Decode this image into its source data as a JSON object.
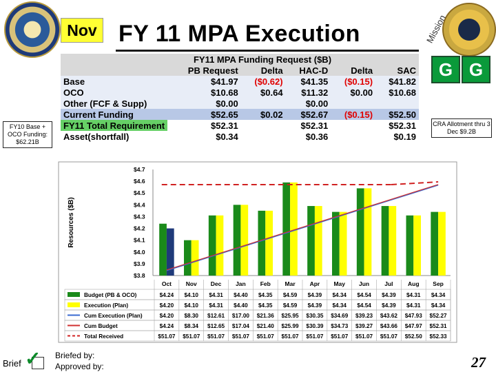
{
  "header": {
    "month_badge": "Nov",
    "title": "FY 11 MPA Execution",
    "mission_text": "Mission",
    "g_left": "G",
    "g_right": "G"
  },
  "notes": {
    "left": "FY10 Base + OCO Funding: $62.21B",
    "right": "CRA Allotment thru 3 Dec $9.2B"
  },
  "funding_table": {
    "title": "FY11 MPA Funding Request ($B)",
    "columns": [
      "PB Request",
      "Delta",
      "HAC-D",
      "Delta",
      "SAC"
    ],
    "rows": [
      {
        "label": "Base",
        "cells": [
          "$41.97",
          "($0.62)",
          "$41.35",
          "($0.15)",
          "$41.82"
        ]
      },
      {
        "label": "OCO",
        "cells": [
          "$10.68",
          "$0.64",
          "$11.32",
          "$0.00",
          "$10.68"
        ]
      },
      {
        "label": "Other (FCF & Supp)",
        "cells": [
          "$0.00",
          "",
          "$0.00",
          "",
          ""
        ]
      },
      {
        "label": "Current Funding",
        "cells": [
          "$52.65",
          "$0.02",
          "$52.67",
          "($0.15)",
          "$52.50"
        ]
      },
      {
        "label": "FY11 Total Requirement",
        "cells": [
          "$52.31",
          "",
          "$52.31",
          "",
          "$52.31"
        ]
      },
      {
        "label": "Asset(shortfall)",
        "cells": [
          "$0.34",
          "",
          "$0.36",
          "",
          "$0.19"
        ]
      }
    ]
  },
  "chart_data": {
    "type": "bar",
    "ylabel": "Resources ($B)",
    "ylim": [
      3.8,
      4.7
    ],
    "y_ticks": [
      "$4.7",
      "$4.6",
      "$4.5",
      "$4.4",
      "$4.3",
      "$4.2",
      "$4.1",
      "$4.0",
      "$3.9",
      "$3.8"
    ],
    "categories": [
      "Oct",
      "Nov",
      "Dec",
      "Jan",
      "Feb",
      "Mar",
      "Apr",
      "May",
      "Jun",
      "Jul",
      "Aug",
      "Sep"
    ],
    "series": [
      {
        "name": "Budget (PB & OCO)",
        "values": [
          4.24,
          4.1,
          4.31,
          4.4,
          4.35,
          4.59,
          4.39,
          4.34,
          4.54,
          4.39,
          4.31,
          4.34
        ],
        "labels": [
          "$4.24",
          "$4.10",
          "$4.31",
          "$4.40",
          "$4.35",
          "$4.59",
          "$4.39",
          "$4.34",
          "$4.54",
          "$4.39",
          "$4.31",
          "$4.34"
        ],
        "color": "#1a8a1a"
      },
      {
        "name": "Execution (Plan)",
        "values": [
          4.2,
          4.1,
          4.31,
          4.4,
          4.35,
          4.59,
          4.39,
          4.34,
          4.54,
          4.39,
          4.31,
          4.34
        ],
        "labels": [
          "$4.20",
          "$4.10",
          "$4.31",
          "$4.40",
          "$4.35",
          "$4.59",
          "$4.39",
          "$4.34",
          "$4.54",
          "$4.39",
          "$4.31",
          "$4.34"
        ],
        "color": "#ffff00",
        "first_bar_color": "#1f3a7a"
      },
      {
        "name": "Cum Execution (Plan)",
        "labels": [
          "$4.20",
          "$8.30",
          "$12.61",
          "$17.00",
          "$21.36",
          "$25.95",
          "$30.35",
          "$34.69",
          "$39.23",
          "$43.62",
          "$47.93",
          "$52.27"
        ],
        "color": "#3a6ad0"
      },
      {
        "name": "Cum Budget",
        "labels": [
          "$4.24",
          "$8.34",
          "$12.65",
          "$17.04",
          "$21.40",
          "$25.99",
          "$30.39",
          "$34.73",
          "$39.27",
          "$43.66",
          "$47.97",
          "$52.31"
        ],
        "color": "#d03030"
      },
      {
        "name": "Total Received",
        "labels": [
          "$51.07",
          "$51.07",
          "$51.07",
          "$51.07",
          "$51.07",
          "$51.07",
          "$51.07",
          "$51.07",
          "$51.07",
          "$51.07",
          "$52.50",
          "$52.33"
        ],
        "color": "#d02020"
      }
    ]
  },
  "footer": {
    "brief": "Brief",
    "briefed_by": "Briefed by:",
    "approved_by": "Approved by:",
    "page_number": "27"
  }
}
